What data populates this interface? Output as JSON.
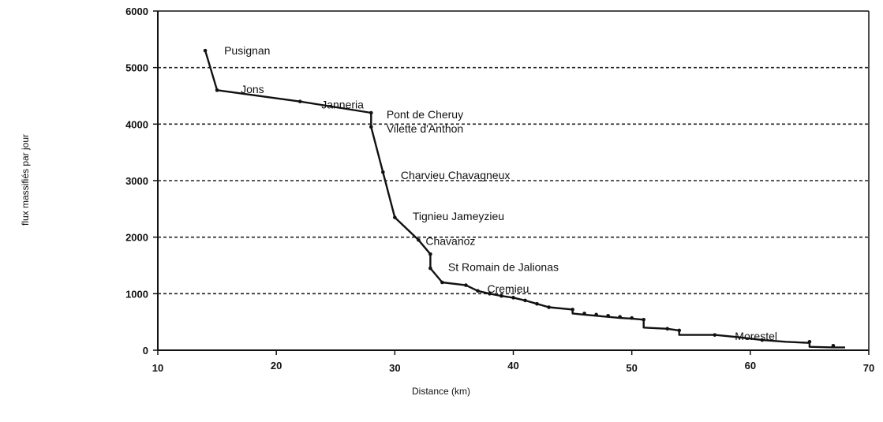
{
  "chart_data": {
    "type": "line",
    "title": "",
    "xlabel": "Distance (km)",
    "ylabel": "flux massifiés par jour",
    "xlim": [
      10,
      70
    ],
    "ylim": [
      0,
      6000
    ],
    "x_ticks": [
      10,
      20,
      30,
      40,
      50,
      60,
      70
    ],
    "x_tick_labels": [
      "10",
      "20",
      "30",
      "40",
      "50",
      "60",
      "70"
    ],
    "y_ticks": [
      0,
      1000,
      2000,
      3000,
      4000,
      5000,
      6000
    ],
    "y_tick_labels": [
      "0",
      "1000",
      "2000",
      "3000",
      "4000",
      "5000",
      "6000"
    ],
    "grid": {
      "horizontal_dashed_at": [
        1000,
        2000,
        3000,
        4000,
        5000
      ]
    },
    "series": [
      {
        "x": [
          14,
          15,
          22,
          28,
          28,
          29,
          30,
          32,
          33,
          33,
          34,
          36,
          37,
          38,
          39,
          40,
          41,
          42,
          43,
          45,
          45,
          46,
          47,
          48,
          49,
          50,
          51,
          51,
          53,
          54,
          54,
          57,
          59,
          61,
          63,
          65,
          65,
          67,
          68
        ],
        "y": [
          5300,
          4600,
          4400,
          4200,
          3950,
          3150,
          2350,
          1950,
          1700,
          1450,
          1200,
          1150,
          1050,
          1000,
          960,
          930,
          880,
          820,
          760,
          720,
          650,
          630,
          610,
          590,
          570,
          560,
          540,
          400,
          380,
          350,
          270,
          270,
          230,
          180,
          150,
          130,
          60,
          50,
          50
        ]
      }
    ],
    "markers_x": [
      14,
      15,
      22,
      28,
      28,
      29,
      30,
      32,
      33,
      33,
      34,
      36,
      37,
      38,
      39,
      40,
      41,
      42,
      43,
      45,
      46,
      47,
      48,
      49,
      50,
      51,
      53,
      54,
      57,
      61,
      65,
      67
    ],
    "markers_y": [
      5300,
      4600,
      4400,
      4200,
      3950,
      3150,
      2350,
      1950,
      1700,
      1450,
      1200,
      1150,
      1050,
      1000,
      960,
      930,
      880,
      820,
      760,
      720,
      650,
      630,
      610,
      590,
      570,
      540,
      380,
      350,
      270,
      180,
      150,
      80
    ],
    "annotations": [
      {
        "text": "Pusignan",
        "x": 15.6,
        "y": 5230
      },
      {
        "text": "Jons",
        "x": 17.0,
        "y": 4550
      },
      {
        "text": "Janneria",
        "x": 23.8,
        "y": 4280
      },
      {
        "text": "Pont de Cheruy",
        "x": 29.3,
        "y": 4100
      },
      {
        "text": "Vilette d'Anthon",
        "x": 29.3,
        "y": 3850
      },
      {
        "text": "Charvieu Chavagneux",
        "x": 30.5,
        "y": 3030
      },
      {
        "text": "Tignieu Jameyzieu",
        "x": 31.5,
        "y": 2300
      },
      {
        "text": "Chavanoz",
        "x": 32.6,
        "y": 1860
      },
      {
        "text": "St Romain de Jalionas",
        "x": 34.5,
        "y": 1400
      },
      {
        "text": "Cremieu",
        "x": 37.8,
        "y": 1020
      },
      {
        "text": "Morestel",
        "x": 58.7,
        "y": 180
      }
    ]
  }
}
